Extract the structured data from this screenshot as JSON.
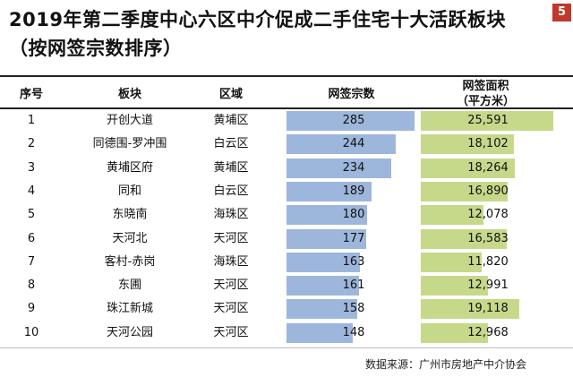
{
  "title_line1": "2019年第二季度中心六区中介促成二手住宅十大活跃板块",
  "title_line2": "（按网签宗数排序）",
  "page_number": "5",
  "colors": {
    "bar_count": "#9db7dc",
    "bar_area": "#c6d98a"
  },
  "headers": {
    "rank": "序号",
    "block": "板块",
    "district": "区域",
    "count": "网签宗数",
    "area_line1": "网签面积",
    "area_line2": "（平方米）"
  },
  "source": "数据来源：广州市房地产中介协会",
  "chart_data": {
    "type": "table",
    "columns": [
      "序号",
      "板块",
      "区域",
      "网签宗数",
      "网签面积（平方米）"
    ],
    "rows": [
      {
        "rank": "1",
        "block": "开创大道",
        "district": "黄埔区",
        "count": 285,
        "count_label": "285",
        "area": 25591,
        "area_label": "25,591"
      },
      {
        "rank": "2",
        "block": "同德围-罗冲围",
        "district": "白云区",
        "count": 244,
        "count_label": "244",
        "area": 18102,
        "area_label": "18,102"
      },
      {
        "rank": "3",
        "block": "黄埔区府",
        "district": "黄埔区",
        "count": 234,
        "count_label": "234",
        "area": 18264,
        "area_label": "18,264"
      },
      {
        "rank": "4",
        "block": "同和",
        "district": "白云区",
        "count": 189,
        "count_label": "189",
        "area": 16890,
        "area_label": "16,890"
      },
      {
        "rank": "5",
        "block": "东晓南",
        "district": "海珠区",
        "count": 180,
        "count_label": "180",
        "area": 12078,
        "area_label": "12,078"
      },
      {
        "rank": "6",
        "block": "天河北",
        "district": "天河区",
        "count": 177,
        "count_label": "177",
        "area": 16583,
        "area_label": "16,583"
      },
      {
        "rank": "7",
        "block": "客村-赤岗",
        "district": "海珠区",
        "count": 163,
        "count_label": "163",
        "area": 11820,
        "area_label": "11,820"
      },
      {
        "rank": "8",
        "block": "东圃",
        "district": "天河区",
        "count": 161,
        "count_label": "161",
        "area": 12991,
        "area_label": "12,991"
      },
      {
        "rank": "9",
        "block": "珠江新城",
        "district": "天河区",
        "count": 158,
        "count_label": "158",
        "area": 19118,
        "area_label": "19,118"
      },
      {
        "rank": "10",
        "block": "天河公园",
        "district": "天河区",
        "count": 148,
        "count_label": "148",
        "area": 12968,
        "area_label": "12,968"
      }
    ]
  }
}
